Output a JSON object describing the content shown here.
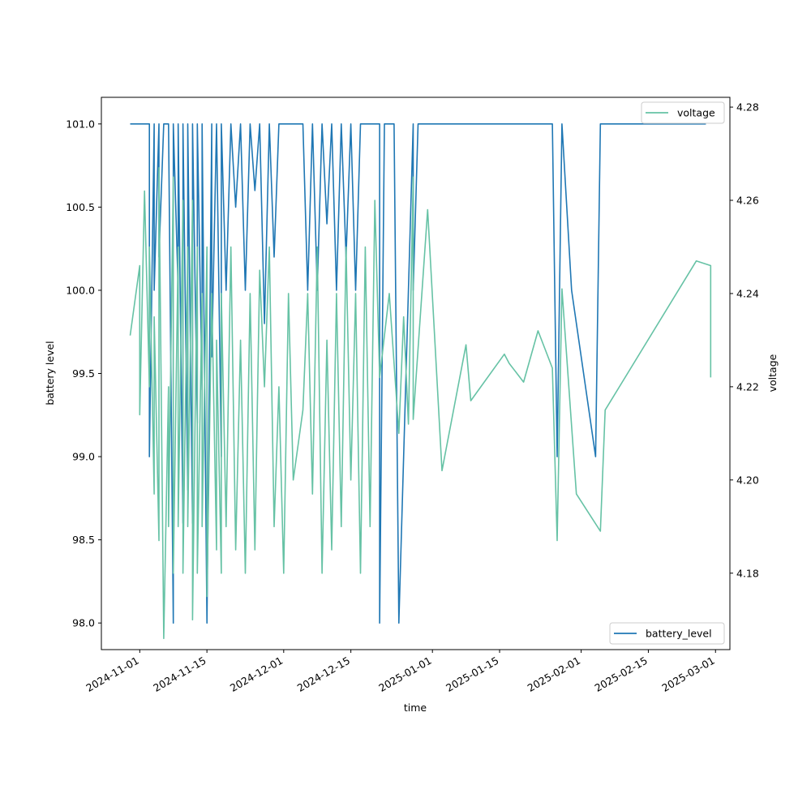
{
  "chart_data": {
    "type": "line",
    "title": "",
    "xlabel": "time",
    "ylabel": "battery level",
    "y2label": "voltage",
    "x_ticks": [
      "2024-11-01",
      "2024-11-15",
      "2024-12-01",
      "2024-12-15",
      "2025-01-01",
      "2025-01-15",
      "2025-02-01",
      "2025-02-15",
      "2025-03-01"
    ],
    "xlim": [
      "2024-10-24",
      "2025-03-04"
    ],
    "ylim": [
      97.84,
      101.16
    ],
    "y_ticks": [
      "98.0",
      "98.5",
      "99.0",
      "99.5",
      "100.0",
      "100.5",
      "101.0"
    ],
    "y2lim": [
      4.1636,
      4.2821
    ],
    "y2_ticks": [
      "4.18",
      "4.20",
      "4.22",
      "4.24",
      "4.26",
      "4.28"
    ],
    "grid": false,
    "series": [
      {
        "name": "battery_level",
        "axis": "left",
        "color": "#1f77b4",
        "legend_position": "lower right",
        "x": [
          "2024-10-30",
          "2024-11-03",
          "2024-11-03",
          "2024-11-04",
          "2024-11-04",
          "2024-11-05",
          "2024-11-05",
          "2024-11-06",
          "2024-11-07",
          "2024-11-08",
          "2024-11-08",
          "2024-11-09",
          "2024-11-09",
          "2024-11-10",
          "2024-11-10",
          "2024-11-11",
          "2024-11-11",
          "2024-11-12",
          "2024-11-12",
          "2024-11-13",
          "2024-11-13",
          "2024-11-14",
          "2024-11-14",
          "2024-11-15",
          "2024-11-16",
          "2024-11-16",
          "2024-11-17",
          "2024-11-18",
          "2024-11-18",
          "2024-11-19",
          "2024-11-20",
          "2024-11-21",
          "2024-11-22",
          "2024-11-23",
          "2024-11-24",
          "2024-11-25",
          "2024-11-26",
          "2024-11-27",
          "2024-11-28",
          "2024-11-29",
          "2024-11-30",
          "2024-12-01",
          "2024-12-05",
          "2024-12-06",
          "2024-12-07",
          "2024-12-08",
          "2024-12-09",
          "2024-12-10",
          "2024-12-11",
          "2024-12-12",
          "2024-12-13",
          "2024-12-14",
          "2024-12-15",
          "2024-12-16",
          "2024-12-17",
          "2024-12-21",
          "2024-12-21",
          "2024-12-22",
          "2024-12-24",
          "2024-12-25",
          "2024-12-28",
          "2024-12-28",
          "2024-12-29",
          "2025-01-26",
          "2025-01-27",
          "2025-01-28",
          "2025-01-30",
          "2025-02-04",
          "2025-02-05",
          "2025-02-27"
        ],
        "values": [
          101.0,
          101.0,
          99.0,
          101.0,
          100.0,
          101.0,
          100.2,
          101.0,
          101.0,
          98.0,
          101.0,
          100.0,
          101.0,
          98.6,
          101.0,
          98.8,
          101.0,
          98.6,
          101.0,
          99.2,
          101.0,
          99.4,
          101.0,
          98.0,
          101.0,
          99.6,
          101.0,
          99.0,
          101.0,
          100.0,
          101.0,
          100.5,
          101.0,
          100.0,
          101.0,
          100.6,
          101.0,
          99.8,
          101.0,
          100.2,
          101.0,
          101.0,
          101.0,
          100.0,
          101.0,
          100.0,
          101.0,
          100.4,
          101.0,
          100.0,
          101.0,
          100.2,
          101.0,
          100.0,
          101.0,
          101.0,
          98.0,
          101.0,
          101.0,
          98.0,
          101.0,
          100.0,
          101.0,
          101.0,
          99.0,
          101.0,
          100.0,
          99.0,
          101.0,
          101.0
        ]
      },
      {
        "name": "voltage",
        "axis": "right",
        "color": "#66c2a5",
        "legend_position": "upper right",
        "x": [
          "2024-10-30",
          "2024-11-01",
          "2024-11-01",
          "2024-11-02",
          "2024-11-03",
          "2024-11-03",
          "2024-11-04",
          "2024-11-04",
          "2024-11-05",
          "2024-11-05",
          "2024-11-06",
          "2024-11-07",
          "2024-11-07",
          "2024-11-08",
          "2024-11-08",
          "2024-11-09",
          "2024-11-09",
          "2024-11-10",
          "2024-11-10",
          "2024-11-11",
          "2024-11-11",
          "2024-11-12",
          "2024-11-12",
          "2024-11-13",
          "2024-11-13",
          "2024-11-14",
          "2024-11-14",
          "2024-11-15",
          "2024-11-15",
          "2024-11-16",
          "2024-11-17",
          "2024-11-17",
          "2024-11-18",
          "2024-11-18",
          "2024-11-19",
          "2024-11-20",
          "2024-11-21",
          "2024-11-22",
          "2024-11-23",
          "2024-11-24",
          "2024-11-25",
          "2024-11-26",
          "2024-11-27",
          "2024-11-28",
          "2024-11-29",
          "2024-11-30",
          "2024-12-01",
          "2024-12-02",
          "2024-12-03",
          "2024-12-05",
          "2024-12-06",
          "2024-12-07",
          "2024-12-08",
          "2024-12-09",
          "2024-12-10",
          "2024-12-11",
          "2024-12-12",
          "2024-12-13",
          "2024-12-14",
          "2024-12-15",
          "2024-12-16",
          "2024-12-17",
          "2024-12-18",
          "2024-12-19",
          "2024-12-20",
          "2024-12-21",
          "2024-12-23",
          "2024-12-25",
          "2024-12-26",
          "2024-12-27",
          "2024-12-28",
          "2024-12-28",
          "2024-12-31",
          "2025-01-03",
          "2025-01-08",
          "2025-01-09",
          "2025-01-16",
          "2025-01-17",
          "2025-01-20",
          "2025-01-23",
          "2025-01-26",
          "2025-01-27",
          "2025-01-28",
          "2025-01-31",
          "2025-02-05",
          "2025-02-06",
          "2025-02-25",
          "2025-02-28",
          "2025-02-28"
        ],
        "values": [
          4.231,
          4.246,
          4.214,
          4.262,
          4.22,
          4.25,
          4.197,
          4.235,
          4.187,
          4.267,
          4.166,
          4.22,
          4.19,
          4.265,
          4.18,
          4.25,
          4.19,
          4.26,
          4.18,
          4.25,
          4.19,
          4.26,
          4.17,
          4.25,
          4.18,
          4.24,
          4.19,
          4.25,
          4.175,
          4.24,
          4.185,
          4.23,
          4.18,
          4.24,
          4.19,
          4.25,
          4.185,
          4.23,
          4.18,
          4.24,
          4.185,
          4.245,
          4.22,
          4.25,
          4.19,
          4.22,
          4.18,
          4.24,
          4.2,
          4.215,
          4.24,
          4.197,
          4.25,
          4.18,
          4.23,
          4.185,
          4.24,
          4.19,
          4.25,
          4.2,
          4.24,
          4.18,
          4.25,
          4.19,
          4.26,
          4.222,
          4.24,
          4.21,
          4.235,
          4.212,
          4.265,
          4.213,
          4.258,
          4.202,
          4.229,
          4.217,
          4.227,
          4.225,
          4.221,
          4.232,
          4.224,
          4.187,
          4.241,
          4.197,
          4.189,
          4.215,
          4.247,
          4.246,
          4.222
        ]
      }
    ]
  }
}
